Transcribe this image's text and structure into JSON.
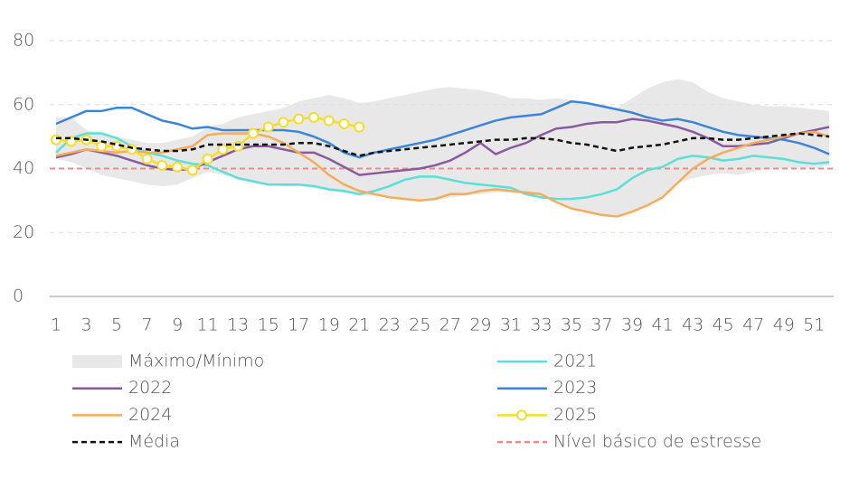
{
  "chart_data": {
    "type": "line",
    "x": [
      1,
      2,
      3,
      4,
      5,
      6,
      7,
      8,
      9,
      10,
      11,
      12,
      13,
      14,
      15,
      16,
      17,
      18,
      19,
      20,
      21,
      22,
      23,
      24,
      25,
      26,
      27,
      28,
      29,
      30,
      31,
      32,
      33,
      34,
      35,
      36,
      37,
      38,
      39,
      40,
      41,
      42,
      43,
      44,
      45,
      46,
      47,
      48,
      49,
      50,
      51,
      52
    ],
    "xlim": [
      1,
      52
    ],
    "xticks": [
      1,
      3,
      5,
      7,
      9,
      11,
      13,
      15,
      17,
      19,
      21,
      23,
      25,
      27,
      29,
      31,
      33,
      35,
      37,
      39,
      41,
      43,
      45,
      47,
      49,
      51
    ],
    "ylim": [
      0,
      80
    ],
    "yticks": [
      0,
      20,
      40,
      60,
      80
    ],
    "grid": true,
    "band": {
      "name": "Máximo/Mínimo",
      "color": "#e8e8e8",
      "max": [
        56,
        56,
        52,
        51,
        50,
        49,
        48,
        48,
        49,
        50,
        53,
        54,
        56,
        57,
        58,
        59,
        61,
        62,
        63,
        62,
        60.5,
        61,
        62,
        63,
        64,
        65,
        65.5,
        65,
        64.5,
        63.5,
        62,
        62,
        61.5,
        62,
        61.5,
        60.5,
        60,
        59,
        62,
        65,
        67,
        68,
        67,
        64,
        62,
        61,
        60,
        59.5,
        59.5,
        59,
        58.5,
        58
      ],
      "min": [
        43,
        42,
        40,
        38,
        37,
        36,
        35,
        34.5,
        35,
        37,
        39,
        38,
        37,
        36,
        35,
        34.5,
        34.5,
        34,
        33,
        32.5,
        31.5,
        31.5,
        31,
        30.5,
        30,
        30,
        31,
        31.5,
        32,
        32.5,
        32.5,
        32,
        31.5,
        30,
        27.5,
        26.5,
        25.5,
        25,
        26.5,
        28.5,
        31,
        35.5,
        37,
        38,
        38.5,
        38,
        39,
        40,
        40,
        40,
        40,
        41
      ]
    },
    "series": [
      {
        "name": "2021",
        "color": "#5ce0d6",
        "values": [
          45,
          49.5,
          51,
          51,
          49.5,
          47,
          45,
          44,
          42.5,
          41.5,
          41,
          39,
          37,
          36,
          35,
          35,
          35,
          34.5,
          33.5,
          33,
          32,
          33,
          34.5,
          36.5,
          37.5,
          37.5,
          36.5,
          35.5,
          35,
          34.5,
          34,
          32,
          31,
          30.5,
          30.5,
          31,
          32,
          33.5,
          37,
          39.5,
          40.5,
          43,
          44,
          43.5,
          42.5,
          43,
          44,
          43.5,
          43,
          42,
          41.5,
          42
        ]
      },
      {
        "name": "2022",
        "color": "#8a5a9e",
        "values": [
          43.5,
          44.5,
          46,
          45,
          44,
          42.5,
          41,
          40,
          39.5,
          40,
          42,
          44,
          46,
          47,
          47,
          46,
          45,
          45,
          43,
          40.5,
          38,
          38.5,
          39,
          39.5,
          40,
          41,
          42.5,
          45,
          48,
          44.5,
          46.5,
          48,
          50.5,
          52.5,
          53,
          54,
          54.5,
          54.5,
          55.5,
          55,
          54,
          53,
          51.5,
          49.5,
          47,
          47,
          47.5,
          48,
          49.5,
          51,
          52,
          53
        ]
      },
      {
        "name": "2023",
        "color": "#3d85d8",
        "values": [
          54,
          56,
          58,
          58,
          59,
          59,
          57,
          55,
          54,
          52.5,
          53,
          52,
          52,
          52,
          52,
          52,
          51.5,
          50,
          48,
          45,
          43.5,
          45,
          46,
          47,
          48,
          49,
          50.5,
          52,
          53.5,
          55,
          56,
          56.5,
          57,
          59,
          61,
          60.5,
          59.5,
          58.5,
          57.5,
          56,
          55,
          55.5,
          54.5,
          53,
          51.5,
          50.5,
          50,
          49.5,
          49,
          48,
          46.5,
          44.5
        ]
      },
      {
        "name": "2024",
        "color": "#f3ad5b",
        "values": [
          44,
          45,
          46,
          45.5,
          45,
          45.5,
          45,
          45,
          46,
          47,
          50.5,
          51,
          51,
          51,
          50,
          48,
          45,
          42,
          38,
          35,
          33,
          32,
          31,
          30.5,
          30,
          30.5,
          32,
          32,
          33,
          33.5,
          33,
          32.5,
          32,
          29.5,
          27.5,
          26.5,
          25.5,
          25,
          26.5,
          28.5,
          31,
          35.5,
          40,
          43,
          45,
          46.5,
          48,
          49,
          50,
          51,
          51.5,
          50
        ]
      },
      {
        "name": "2025",
        "color": "#f8dc2a",
        "markers": true,
        "values": [
          49,
          48.5,
          49,
          47,
          47,
          46,
          43,
          41,
          40.5,
          39.5,
          43,
          46,
          47,
          51,
          53,
          54.5,
          55.5,
          56,
          55,
          54,
          53,
          null,
          null,
          null,
          null,
          null,
          null,
          null,
          null,
          null,
          null,
          null,
          null,
          null,
          null,
          null,
          null,
          null,
          null,
          null,
          null,
          null,
          null,
          null,
          null,
          null,
          null,
          null,
          null,
          null,
          null,
          null
        ]
      },
      {
        "name": "Média",
        "color": "#111111",
        "dash": true,
        "values": [
          49.5,
          49.5,
          49,
          48.5,
          47.5,
          46.5,
          46,
          45.5,
          45.5,
          46,
          47.5,
          47.5,
          47.5,
          47.5,
          47.5,
          47.5,
          48,
          48,
          47,
          45.5,
          44,
          45,
          45.5,
          46,
          46.5,
          47,
          47.5,
          48,
          48.5,
          49,
          49,
          49.5,
          49.5,
          49,
          48,
          47.5,
          46.5,
          45.5,
          46.5,
          47,
          47.5,
          48.5,
          49.5,
          49.5,
          49,
          49,
          49.5,
          50,
          50.5,
          51,
          50.5,
          50
        ]
      }
    ],
    "threshold": {
      "name": "Nível básico de estresse",
      "color": "#f08a8a",
      "value": 40
    }
  }
}
